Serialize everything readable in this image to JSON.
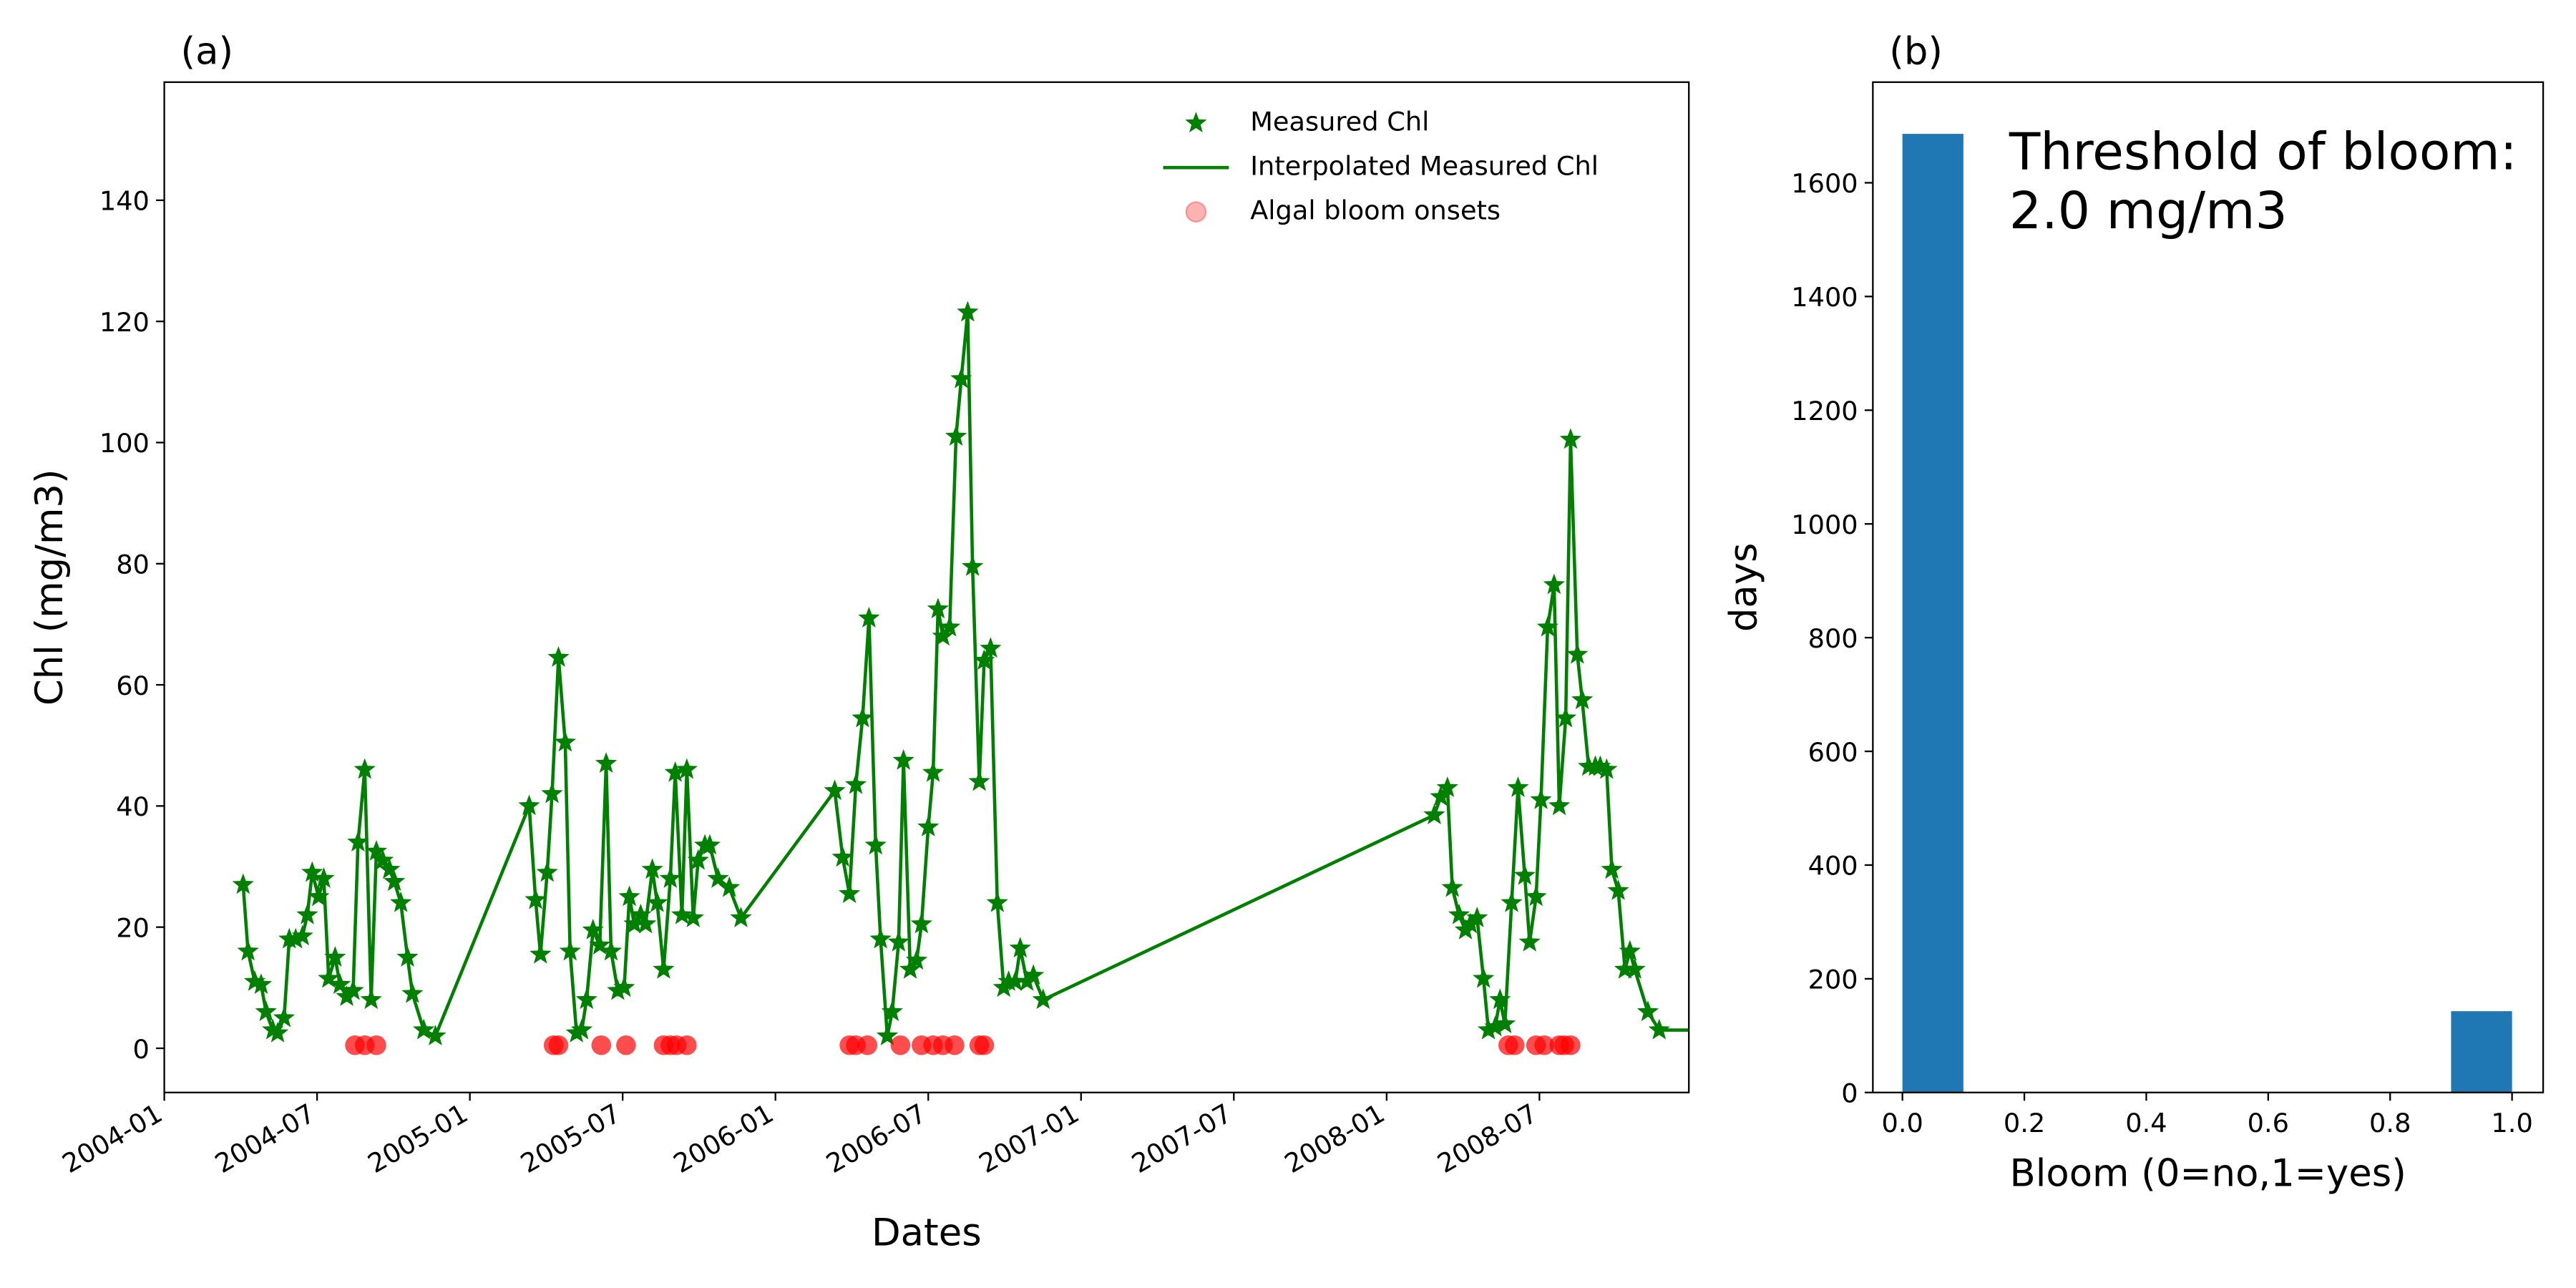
{
  "chart_data": [
    {
      "type": "line",
      "title": "(a)",
      "x_label": "Dates",
      "y_label": "Chl (mg/m3)",
      "xlim": [
        2004.0,
        2008.989
      ],
      "ylim": [
        -7.3,
        159.5
      ],
      "xticks": [
        {
          "value": 2004.0,
          "label": "2004-01"
        },
        {
          "value": 2004.5,
          "label": "2004-07"
        },
        {
          "value": 2005.0,
          "label": "2005-01"
        },
        {
          "value": 2005.5,
          "label": "2005-07"
        },
        {
          "value": 2006.0,
          "label": "2006-01"
        },
        {
          "value": 2006.5,
          "label": "2006-07"
        },
        {
          "value": 2007.0,
          "label": "2007-01"
        },
        {
          "value": 2007.5,
          "label": "2007-07"
        },
        {
          "value": 2008.0,
          "label": "2008-01"
        },
        {
          "value": 2008.5,
          "label": "2008-07"
        }
      ],
      "yticks": [
        0,
        20,
        40,
        60,
        80,
        100,
        120,
        140
      ],
      "legend": "upper right",
      "series": [
        {
          "name": "Measured Chl",
          "color": "#008000",
          "marker": "star",
          "line": false,
          "x": [
            2004.258,
            2004.274,
            2004.296,
            2004.317,
            2004.333,
            2004.355,
            2004.371,
            2004.392,
            2004.409,
            2004.43,
            2004.452,
            2004.468,
            2004.484,
            2004.505,
            2004.522,
            2004.538,
            2004.559,
            2004.575,
            2004.597,
            2004.618,
            2004.634,
            2004.656,
            2004.677,
            2004.694,
            2004.715,
            2004.737,
            2004.753,
            2004.774,
            2004.796,
            2004.812,
            2004.849,
            2004.887,
            2005.194,
            2005.215,
            2005.231,
            2005.253,
            2005.269,
            2005.29,
            2005.312,
            2005.328,
            2005.349,
            2005.366,
            2005.382,
            2005.403,
            2005.425,
            2005.446,
            2005.462,
            2005.484,
            2005.505,
            2005.522,
            2005.538,
            2005.559,
            2005.575,
            2005.597,
            2005.613,
            2005.634,
            2005.656,
            2005.672,
            2005.694,
            2005.71,
            2005.731,
            2005.747,
            2005.769,
            2005.785,
            2005.812,
            2005.849,
            2005.887,
            2006.194,
            2006.22,
            2006.242,
            2006.263,
            2006.285,
            2006.306,
            2006.328,
            2006.344,
            2006.366,
            2006.382,
            2006.403,
            2006.419,
            2006.441,
            2006.462,
            2006.478,
            2006.5,
            2006.516,
            2006.532,
            2006.548,
            2006.57,
            2006.591,
            2006.608,
            2006.629,
            2006.645,
            2006.667,
            2006.683,
            2006.704,
            2006.726,
            2006.747,
            2006.763,
            2006.785,
            2006.801,
            2006.823,
            2006.844,
            2006.876,
            2008.156,
            2008.177,
            2008.199,
            2008.215,
            2008.237,
            2008.258,
            2008.274,
            2008.296,
            2008.317,
            2008.333,
            2008.355,
            2008.371,
            2008.387,
            2008.409,
            2008.43,
            2008.452,
            2008.468,
            2008.489,
            2008.505,
            2008.527,
            2008.548,
            2008.565,
            2008.586,
            2008.602,
            2008.624,
            2008.64,
            2008.661,
            2008.683,
            2008.699,
            2008.72,
            2008.737,
            2008.758,
            2008.78,
            2008.796,
            2008.812,
            2008.855,
            2008.892
          ],
          "values": [
            27,
            16,
            11,
            10.5,
            6,
            3,
            2.5,
            5,
            18,
            18,
            18.5,
            22,
            29,
            25,
            28,
            11.5,
            15,
            10.5,
            8.5,
            9.5,
            34,
            46,
            8,
            32.5,
            31,
            29.5,
            27.5,
            24,
            15,
            9,
            3,
            2,
            40,
            24.5,
            15.5,
            29,
            42,
            64.5,
            50.5,
            16,
            2.5,
            3,
            8,
            19.5,
            17,
            47,
            16,
            9.5,
            10,
            25,
            20.5,
            22,
            20.5,
            29.5,
            24,
            13,
            28,
            45.5,
            22,
            46,
            21.5,
            31,
            33.5,
            33.5,
            28,
            26.5,
            21.5,
            42.5,
            31.5,
            25.5,
            43.5,
            54.5,
            71,
            33.5,
            18,
            2,
            6,
            17.5,
            47.5,
            13,
            14.5,
            20.5,
            36.5,
            45.5,
            72.5,
            68,
            69.5,
            101,
            110.5,
            121.5,
            79.5,
            44,
            64,
            66,
            24,
            10,
            11,
            11,
            16.5,
            11,
            12,
            8,
            38.5,
            41.5,
            43,
            26.5,
            22,
            19.5,
            20.5,
            21.5,
            11.5,
            3,
            3.5,
            8,
            4,
            24,
            43,
            28.5,
            17.5,
            25,
            41,
            69.5,
            76.5,
            40,
            54.5,
            100.5,
            65,
            57.5,
            46.5,
            46.5,
            46.5,
            46,
            29.5,
            26,
            13,
            16,
            13,
            6,
            3
          ]
        },
        {
          "name": "Interpolated Measured Chl",
          "color": "#008000",
          "marker": null,
          "line": true,
          "x": [
            2004.258,
            2004.274,
            2004.296,
            2004.317,
            2004.333,
            2004.355,
            2004.371,
            2004.392,
            2004.409,
            2004.43,
            2004.452,
            2004.468,
            2004.484,
            2004.505,
            2004.522,
            2004.538,
            2004.559,
            2004.575,
            2004.597,
            2004.618,
            2004.634,
            2004.656,
            2004.677,
            2004.694,
            2004.715,
            2004.737,
            2004.753,
            2004.774,
            2004.796,
            2004.812,
            2004.849,
            2004.887,
            2005.194,
            2005.215,
            2005.231,
            2005.253,
            2005.269,
            2005.29,
            2005.312,
            2005.328,
            2005.349,
            2005.366,
            2005.382,
            2005.403,
            2005.425,
            2005.446,
            2005.462,
            2005.484,
            2005.505,
            2005.522,
            2005.538,
            2005.559,
            2005.575,
            2005.597,
            2005.613,
            2005.634,
            2005.656,
            2005.672,
            2005.694,
            2005.71,
            2005.731,
            2005.747,
            2005.769,
            2005.785,
            2005.812,
            2005.849,
            2005.887,
            2006.194,
            2006.22,
            2006.242,
            2006.263,
            2006.285,
            2006.306,
            2006.328,
            2006.344,
            2006.366,
            2006.382,
            2006.403,
            2006.419,
            2006.441,
            2006.462,
            2006.478,
            2006.5,
            2006.516,
            2006.532,
            2006.548,
            2006.57,
            2006.591,
            2006.608,
            2006.629,
            2006.645,
            2006.667,
            2006.683,
            2006.704,
            2006.726,
            2006.747,
            2006.763,
            2006.785,
            2006.801,
            2006.823,
            2006.844,
            2006.876,
            2008.156,
            2008.177,
            2008.199,
            2008.215,
            2008.237,
            2008.258,
            2008.274,
            2008.296,
            2008.317,
            2008.333,
            2008.355,
            2008.371,
            2008.387,
            2008.409,
            2008.43,
            2008.452,
            2008.468,
            2008.489,
            2008.505,
            2008.527,
            2008.548,
            2008.565,
            2008.586,
            2008.602,
            2008.624,
            2008.64,
            2008.661,
            2008.683,
            2008.699,
            2008.72,
            2008.737,
            2008.758,
            2008.78,
            2008.796,
            2008.812,
            2008.855,
            2008.892,
            2008.989
          ],
          "values": [
            27,
            16,
            11,
            10.5,
            6,
            3,
            2.5,
            5,
            18,
            18,
            18.5,
            22,
            29,
            25,
            28,
            11.5,
            15,
            10.5,
            8.5,
            9.5,
            34,
            46,
            8,
            32.5,
            31,
            29.5,
            27.5,
            24,
            15,
            9,
            3,
            2,
            40,
            24.5,
            15.5,
            29,
            42,
            64.5,
            50.5,
            16,
            2.5,
            3,
            8,
            19.5,
            17,
            47,
            16,
            9.5,
            10,
            25,
            20.5,
            22,
            20.5,
            29.5,
            24,
            13,
            28,
            45.5,
            22,
            46,
            21.5,
            31,
            33.5,
            33.5,
            28,
            26.5,
            21.5,
            42.5,
            31.5,
            25.5,
            43.5,
            54.5,
            71,
            33.5,
            18,
            2,
            6,
            17.5,
            47.5,
            13,
            14.5,
            20.5,
            36.5,
            45.5,
            72.5,
            68,
            69.5,
            101,
            110.5,
            121.5,
            79.5,
            44,
            64,
            66,
            24,
            10,
            11,
            11,
            16.5,
            11,
            12,
            8,
            38.5,
            41.5,
            43,
            26.5,
            22,
            19.5,
            20.5,
            21.5,
            11.5,
            3,
            3.5,
            8,
            4,
            24,
            43,
            28.5,
            17.5,
            25,
            41,
            69.5,
            76.5,
            40,
            54.5,
            100.5,
            65,
            57.5,
            46.5,
            46.5,
            46.5,
            46,
            29.5,
            26,
            13,
            16,
            13,
            6,
            3,
            3
          ]
        },
        {
          "name": "Algal bloom onsets",
          "color": "#ff0000",
          "marker": "circle",
          "line": false,
          "x": [
            2004.624,
            2004.656,
            2004.694,
            2005.274,
            2005.29,
            2005.43,
            2005.511,
            2005.634,
            2005.656,
            2005.677,
            2005.71,
            2006.242,
            2006.263,
            2006.301,
            2006.409,
            2006.478,
            2006.516,
            2006.548,
            2006.586,
            2006.667,
            2006.683,
            2008.398,
            2008.419,
            2008.489,
            2008.516,
            2008.565,
            2008.581,
            2008.602
          ],
          "values": [
            0.5,
            0.5,
            0.5,
            0.5,
            0.5,
            0.5,
            0.5,
            0.5,
            0.5,
            0.5,
            0.5,
            0.5,
            0.5,
            0.5,
            0.5,
            0.5,
            0.5,
            0.5,
            0.5,
            0.5,
            0.5,
            0.5,
            0.5,
            0.5,
            0.5,
            0.5,
            0.5,
            0.5
          ]
        }
      ]
    },
    {
      "type": "histogram",
      "title": "(b)",
      "x_label": "Bloom (0=no,1=yes)",
      "y_label": "days",
      "annotation": [
        "Threshold of bloom:",
        "2.0 mg/m3"
      ],
      "color": "#1f77b4",
      "bins": [
        0.0,
        0.1,
        0.2,
        0.3,
        0.4,
        0.5,
        0.6,
        0.7,
        0.8,
        0.9,
        1.0
      ],
      "counts": [
        1686,
        0,
        0,
        0,
        0,
        0,
        0,
        0,
        0,
        143
      ],
      "xlim": [
        -0.0485,
        1.051
      ],
      "ylim": [
        0,
        1777
      ],
      "xticks": [
        {
          "value": 0,
          "label": "0.0"
        },
        {
          "value": 0.2,
          "label": "0.2"
        },
        {
          "value": 0.4,
          "label": "0.4"
        },
        {
          "value": 0.6,
          "label": "0.6"
        },
        {
          "value": 0.8,
          "label": "0.8"
        },
        {
          "value": 1,
          "label": "1.0"
        }
      ],
      "yticks": [
        0,
        200,
        400,
        600,
        800,
        1000,
        1200,
        1400,
        1600
      ]
    }
  ]
}
